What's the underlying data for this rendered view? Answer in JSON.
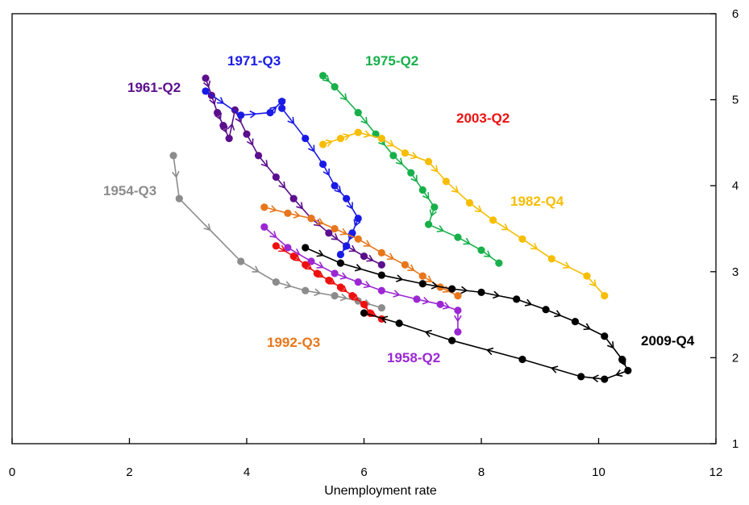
{
  "chart_data": {
    "type": "line",
    "title": "",
    "xlabel": "Unemployment rate",
    "ylabel": "",
    "xlim": [
      0,
      12
    ],
    "ylim": [
      1,
      6
    ],
    "x_ticks": [
      "0",
      "2",
      "4",
      "6",
      "8",
      "10",
      "12"
    ],
    "y_ticks": [
      "1",
      "2",
      "3",
      "4",
      "5",
      "6"
    ],
    "y_axis_side": "right",
    "grid": false,
    "series": [
      {
        "name": "1954-Q3",
        "color": "#8c8c8c",
        "points": [
          [
            2.75,
            4.35
          ],
          [
            2.85,
            3.85
          ],
          [
            3.9,
            3.12
          ],
          [
            4.5,
            2.88
          ],
          [
            5.0,
            2.78
          ],
          [
            5.5,
            2.72
          ],
          [
            5.9,
            2.66
          ],
          [
            6.3,
            2.58
          ]
        ]
      },
      {
        "name": "1958-Q2",
        "color": "#9b27d3",
        "points": [
          [
            4.3,
            3.52
          ],
          [
            4.7,
            3.28
          ],
          [
            5.1,
            3.12
          ],
          [
            5.5,
            2.98
          ],
          [
            5.9,
            2.88
          ],
          [
            6.3,
            2.78
          ],
          [
            6.9,
            2.68
          ],
          [
            7.3,
            2.62
          ],
          [
            7.6,
            2.55
          ],
          [
            7.6,
            2.3
          ]
        ]
      },
      {
        "name": "1961-Q2",
        "color": "#5b0f8c",
        "points": [
          [
            3.3,
            5.25
          ],
          [
            3.4,
            5.05
          ],
          [
            3.5,
            4.85
          ],
          [
            3.6,
            4.7
          ],
          [
            3.7,
            4.55
          ],
          [
            3.8,
            4.88
          ],
          [
            4.0,
            4.6
          ],
          [
            4.2,
            4.35
          ],
          [
            4.5,
            4.1
          ],
          [
            4.8,
            3.85
          ],
          [
            5.1,
            3.62
          ],
          [
            5.4,
            3.45
          ],
          [
            5.7,
            3.3
          ],
          [
            6.0,
            3.18
          ],
          [
            6.3,
            3.08
          ]
        ]
      },
      {
        "name": "1971-Q3",
        "color": "#1a1ae6",
        "points": [
          [
            3.3,
            5.1
          ],
          [
            3.9,
            4.82
          ],
          [
            4.4,
            4.85
          ],
          [
            4.6,
            4.98
          ],
          [
            4.6,
            4.9
          ],
          [
            5.0,
            4.55
          ],
          [
            5.3,
            4.25
          ],
          [
            5.5,
            4.0
          ],
          [
            5.7,
            3.85
          ],
          [
            5.9,
            3.62
          ],
          [
            5.8,
            3.45
          ],
          [
            5.7,
            3.3
          ],
          [
            5.6,
            3.2
          ]
        ]
      },
      {
        "name": "1975-Q2",
        "color": "#17b04a",
        "points": [
          [
            5.3,
            5.28
          ],
          [
            5.5,
            5.15
          ],
          [
            5.9,
            4.85
          ],
          [
            6.2,
            4.6
          ],
          [
            6.5,
            4.35
          ],
          [
            6.8,
            4.15
          ],
          [
            7.0,
            3.95
          ],
          [
            7.2,
            3.75
          ],
          [
            7.1,
            3.55
          ],
          [
            7.6,
            3.4
          ],
          [
            8.0,
            3.25
          ],
          [
            8.3,
            3.1
          ]
        ]
      },
      {
        "name": "1982-Q4",
        "color": "#f7bd00",
        "points": [
          [
            5.3,
            4.48
          ],
          [
            5.6,
            4.55
          ],
          [
            5.9,
            4.62
          ],
          [
            6.3,
            4.55
          ],
          [
            6.7,
            4.38
          ],
          [
            7.1,
            4.28
          ],
          [
            7.4,
            4.05
          ],
          [
            7.8,
            3.8
          ],
          [
            8.2,
            3.6
          ],
          [
            8.7,
            3.38
          ],
          [
            9.2,
            3.15
          ],
          [
            9.8,
            2.95
          ],
          [
            10.1,
            2.72
          ]
        ]
      },
      {
        "name": "1992-Q3",
        "color": "#e8761a",
        "points": [
          [
            4.3,
            3.75
          ],
          [
            4.7,
            3.68
          ],
          [
            5.1,
            3.62
          ],
          [
            5.5,
            3.5
          ],
          [
            5.9,
            3.38
          ],
          [
            6.3,
            3.22
          ],
          [
            6.7,
            3.08
          ],
          [
            7.0,
            2.95
          ],
          [
            7.3,
            2.82
          ],
          [
            7.6,
            2.72
          ]
        ]
      },
      {
        "name": "2003-Q2",
        "color": "#ee1010",
        "points": [
          [
            4.5,
            3.3
          ],
          [
            4.8,
            3.18
          ],
          [
            5.0,
            3.08
          ],
          [
            5.2,
            2.98
          ],
          [
            5.4,
            2.9
          ],
          [
            5.6,
            2.82
          ],
          [
            5.8,
            2.72
          ],
          [
            6.0,
            2.62
          ],
          [
            6.1,
            2.52
          ],
          [
            6.3,
            2.45
          ]
        ]
      },
      {
        "name": "2009-Q4",
        "color": "#000000",
        "points": [
          [
            5.0,
            3.28
          ],
          [
            5.6,
            3.1
          ],
          [
            6.3,
            2.96
          ],
          [
            7.0,
            2.86
          ],
          [
            7.5,
            2.8
          ],
          [
            8.0,
            2.76
          ],
          [
            8.6,
            2.68
          ],
          [
            9.1,
            2.56
          ],
          [
            9.6,
            2.42
          ],
          [
            10.1,
            2.25
          ],
          [
            10.4,
            1.98
          ],
          [
            10.5,
            1.85
          ],
          [
            10.1,
            1.75
          ],
          [
            9.7,
            1.78
          ],
          [
            8.7,
            1.98
          ],
          [
            7.5,
            2.2
          ],
          [
            6.6,
            2.4
          ],
          [
            6.0,
            2.52
          ]
        ]
      }
    ]
  }
}
